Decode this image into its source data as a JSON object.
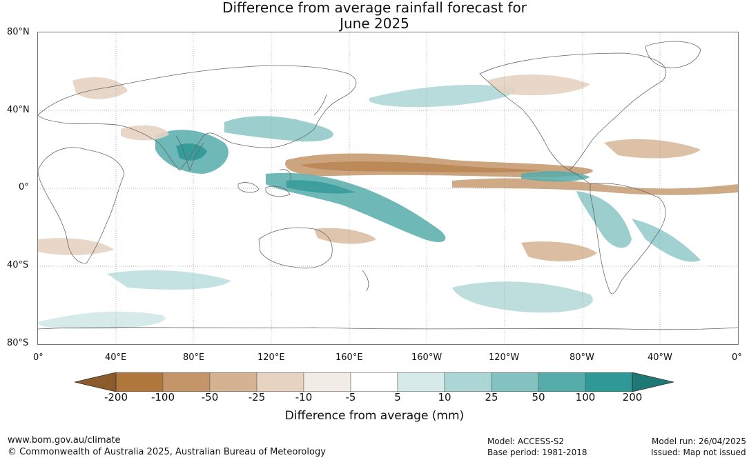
{
  "title": {
    "line1": "Difference from average rainfall forecast for",
    "line2": "June 2025"
  },
  "map": {
    "lat_labels": [
      "80°N",
      "40°N",
      "0°",
      "40°S",
      "80°S"
    ],
    "lon_labels": [
      "0°",
      "40°E",
      "80°E",
      "120°E",
      "160°E",
      "160°W",
      "120°W",
      "80°W",
      "40°W",
      "0°"
    ]
  },
  "colorbar": {
    "title": "Difference from average (mm)",
    "ticks": [
      "-200",
      "-100",
      "-50",
      "-25",
      "-10",
      "-5",
      "5",
      "10",
      "25",
      "50",
      "100",
      "200"
    ],
    "colors": {
      "below_min": "#8c5b2c",
      "bins": [
        "#b0773d",
        "#c39569",
        "#d5b291",
        "#e6d3c2",
        "#f1ece6",
        "#ffffff",
        "#d6eae9",
        "#acd6d5",
        "#82c2c1",
        "#56abab",
        "#2f9997"
      ],
      "above_max": "#1f7876"
    }
  },
  "footer": {
    "url": "www.bom.gov.au/climate",
    "copyright": "© Commonwealth of Australia 2025, Australian Bureau of Meteorology",
    "model": "Model: ACCESS-S2",
    "base_period": "Base period: 1981-2018",
    "model_run": "Model run: 26/04/2025",
    "issued": "Issued: Map not issued"
  }
}
